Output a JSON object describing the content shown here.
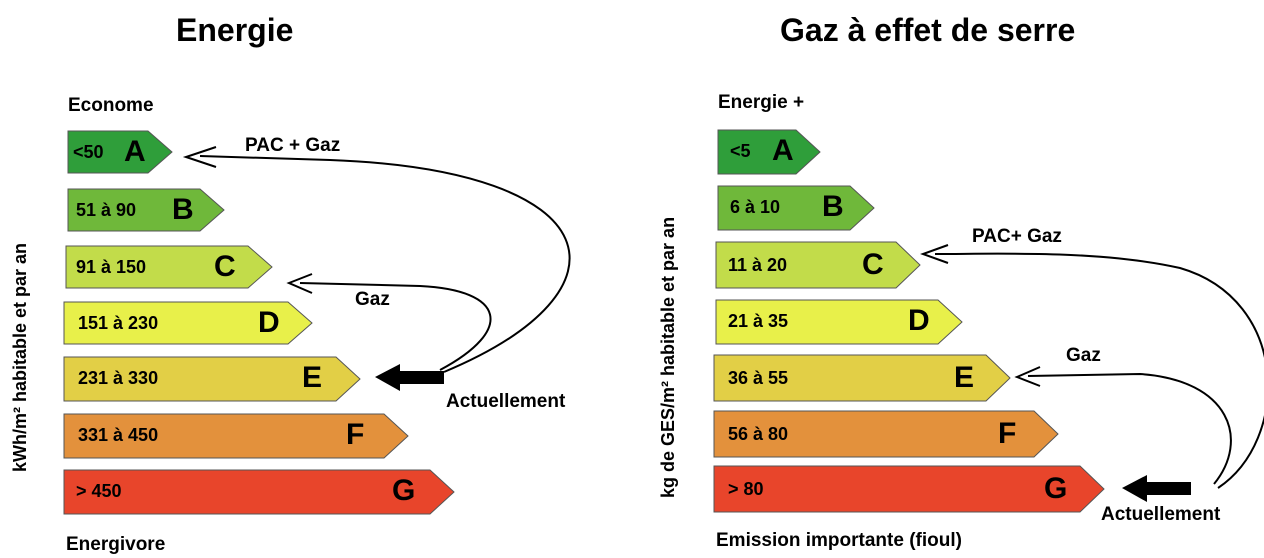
{
  "energie": {
    "title": "Energie",
    "top_label": "Econome",
    "bottom_label": "Energivore",
    "axis_label": "kWh/m² habitable et par an",
    "ratings": [
      {
        "range": "<50",
        "letter": "A",
        "color": "#2f9e3a"
      },
      {
        "range": "51 à 90",
        "letter": "B",
        "color": "#6fb83a"
      },
      {
        "range": "91 à 150",
        "letter": "C",
        "color": "#c2dc4a"
      },
      {
        "range": "151 à 230",
        "letter": "D",
        "color": "#e8f04a"
      },
      {
        "range": "231 à 330",
        "letter": "E",
        "color": "#e2cf46"
      },
      {
        "range": "331 à 450",
        "letter": "F",
        "color": "#e3913c"
      },
      {
        "range": "> 450",
        "letter": "G",
        "color": "#e8452b"
      }
    ],
    "annotations": {
      "pac_gaz": "PAC + Gaz",
      "gaz": "Gaz",
      "actuellement": "Actuellement"
    }
  },
  "ges": {
    "title": "Gaz à effet de serre",
    "top_label": "Energie +",
    "bottom_label": "Emission importante (fioul)",
    "axis_label": "kg de GES/m² habitable et par an",
    "ratings": [
      {
        "range": "<5",
        "letter": "A",
        "color": "#2f9e3a"
      },
      {
        "range": "6 à 10",
        "letter": "B",
        "color": "#6fb83a"
      },
      {
        "range": "11 à 20",
        "letter": "C",
        "color": "#c2dc4a"
      },
      {
        "range": "21 à 35",
        "letter": "D",
        "color": "#e8f04a"
      },
      {
        "range": "36 à 55",
        "letter": "E",
        "color": "#e2cf46"
      },
      {
        "range": "56 à 80",
        "letter": "F",
        "color": "#e3913c"
      },
      {
        "range": "> 80",
        "letter": "G",
        "color": "#e8452b"
      }
    ],
    "annotations": {
      "pac_gaz": "PAC+ Gaz",
      "gaz": "Gaz",
      "actuellement": "Actuellement"
    }
  }
}
